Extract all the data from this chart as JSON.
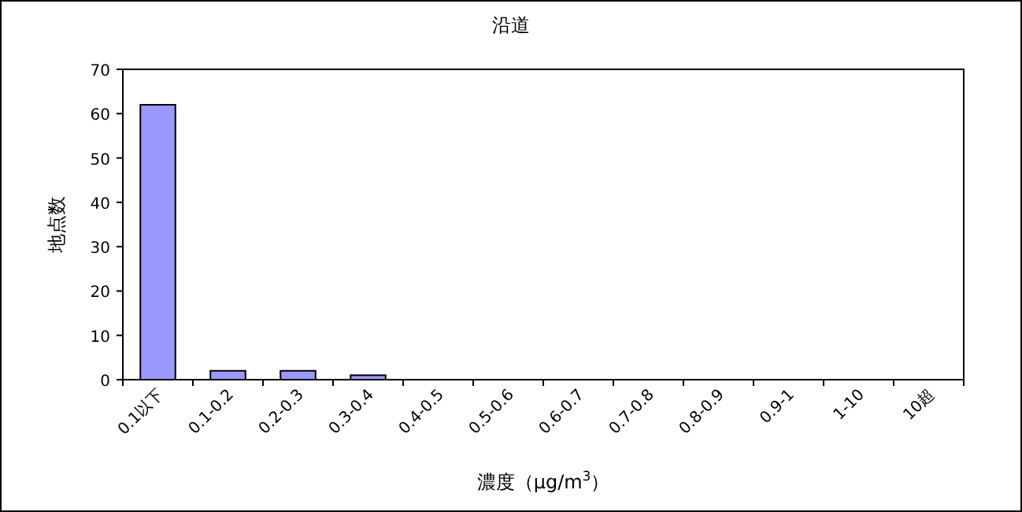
{
  "chart_data": {
    "type": "bar",
    "title": "沿道",
    "xlabel": "濃度（μg/m$^{3}$）",
    "ylabel": "地点数",
    "categories": [
      "0.1以下",
      "0.1-0.2",
      "0.2-0.3",
      "0.3-0.4",
      "0.4-0.5",
      "0.5-0.6",
      "0.6-0.7",
      "0.7-0.8",
      "0.8-0.9",
      "0.9-1",
      "1-10",
      "10超"
    ],
    "values": [
      62,
      2,
      2,
      1,
      0,
      0,
      0,
      0,
      0,
      0,
      0,
      0
    ],
    "color": "#9999ff",
    "ylim": [
      0,
      70
    ],
    "yticks": [
      0,
      10,
      20,
      30,
      40,
      50,
      60,
      70
    ],
    "grid": false
  }
}
